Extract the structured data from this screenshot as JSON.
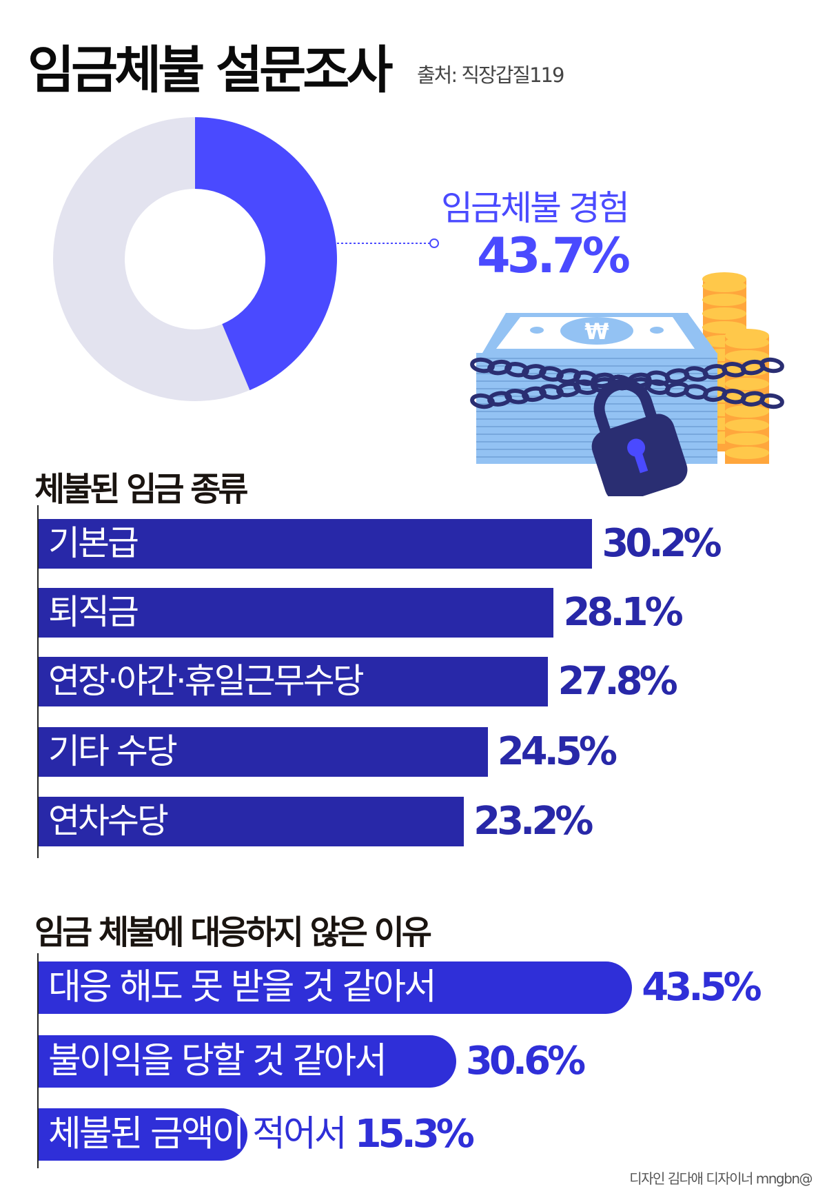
{
  "header": {
    "title": "임금체불 설문조사",
    "source": "출처: 직장갑질119"
  },
  "donut": {
    "label": "임금체불 경험",
    "value_text": "43.7%",
    "value": 43.7,
    "colors": {
      "highlight": "#4a4aff",
      "rest": "#e3e3ef"
    }
  },
  "illustration": {
    "icons": [
      "money-stack-icon",
      "won-icon",
      "chain-icon",
      "padlock-icon",
      "coin-stack-icon"
    ],
    "currency_symbol": "₩"
  },
  "wage_types": {
    "title": "체불된 임금 종류",
    "color": "#2828a8",
    "items": [
      {
        "label": "기본급",
        "value": 30.2,
        "text": "30.2%"
      },
      {
        "label": "퇴직금",
        "value": 28.1,
        "text": "28.1%"
      },
      {
        "label": "연장·야간·휴일근무수당",
        "value": 27.8,
        "text": "27.8%"
      },
      {
        "label": "기타 수당",
        "value": 24.5,
        "text": "24.5%"
      },
      {
        "label": "연차수당",
        "value": 23.2,
        "text": "23.2%"
      }
    ]
  },
  "reasons": {
    "title": "임금 체불에 대응하지 않은 이유",
    "color": "#2f2fd8",
    "items": [
      {
        "label": "대응 해도 못 받을 것 같아서",
        "value": 43.5,
        "text": "43.5%"
      },
      {
        "label": "불이익을 당할 것 같아서",
        "value": 30.6,
        "text": "30.6%"
      },
      {
        "label": "체불된 금액이 적어서",
        "value": 15.3,
        "text": "15.3%"
      }
    ]
  },
  "footer": {
    "credit": "디자인 김다애 디자이너 mngbn@"
  }
}
